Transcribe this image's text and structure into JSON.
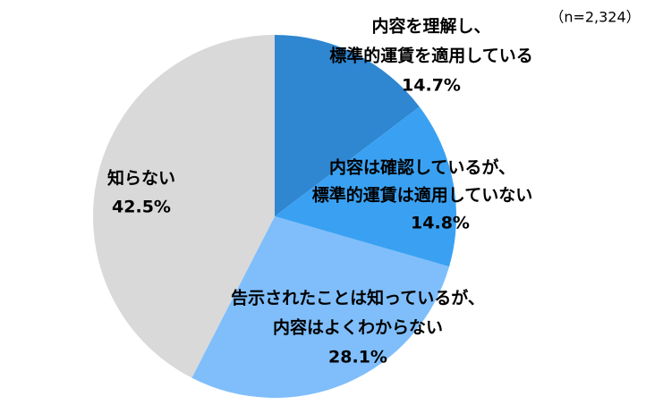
{
  "chart_data": {
    "type": "pie",
    "annotation": "（n=2,324）",
    "categories": [
      [
        "内容を理解し、",
        "標準的運賃を適用している"
      ],
      [
        "内容は確認しているが、",
        "標準的運賃は適用していない"
      ],
      [
        "告示されたことは知っているが、",
        "内容はよくわからない"
      ],
      [
        "知らない"
      ]
    ],
    "values": [
      14.7,
      14.8,
      28.1,
      42.5
    ],
    "value_labels": [
      "14.7%",
      "14.8%",
      "28.1%",
      "42.5%"
    ],
    "colors": [
      "#2f86d1",
      "#3aa1f2",
      "#7fbefb",
      "#d9d9d9"
    ]
  }
}
